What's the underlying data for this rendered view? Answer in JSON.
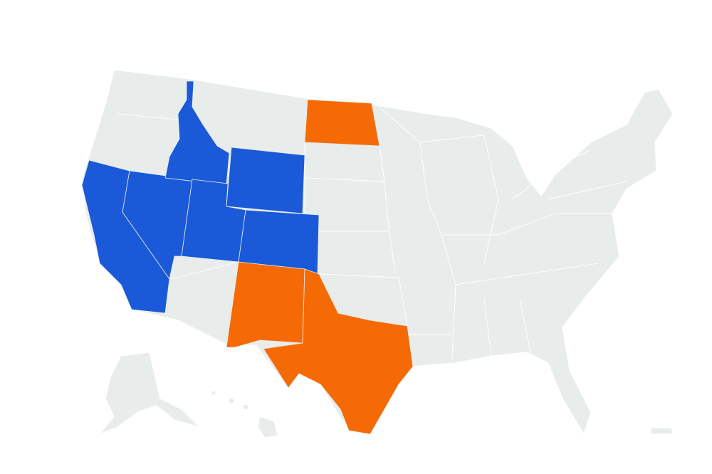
{
  "map": {
    "colors": {
      "background": "#ffffff",
      "base": "#e8ecea",
      "group_blue": "#1a5ad8",
      "group_orange": "#f66a06"
    }
  }
}
